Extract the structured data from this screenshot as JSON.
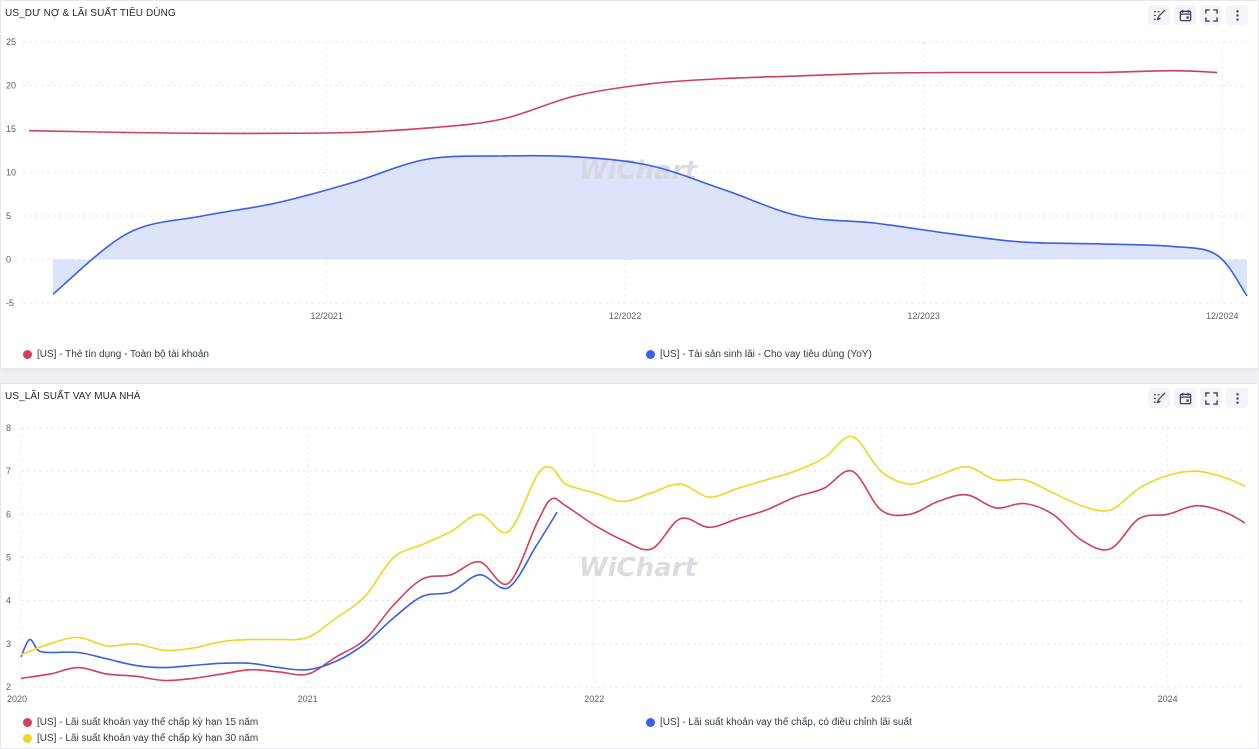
{
  "panels": [
    {
      "title": "US_DƯ NỢ & LÃI SUẤT TIÊU DÙNG",
      "toolbar": [
        "brush-icon",
        "calendar-icon",
        "fullscreen-icon",
        "more-icon"
      ],
      "watermark": "WiChart",
      "legend": [
        {
          "label": "[US] - Thẻ tín dụng - Toàn bộ tài khoản",
          "color": "#d0405a"
        },
        {
          "label": "[US] - Tài sản sinh lãi - Cho vay tiêu dùng (YoY)",
          "color": "#3a5ee8"
        }
      ]
    },
    {
      "title": "US_LÃI SUẤT VAY MUA NHÀ",
      "toolbar": [
        "brush-icon",
        "calendar-icon",
        "fullscreen-icon",
        "more-icon"
      ],
      "watermark": "WiChart",
      "legend": [
        {
          "label": "[US] - Lãi suất khoản vay thế chấp kỳ hạn 15 năm",
          "color": "#d0405a"
        },
        {
          "label": "[US] - Lãi suất khoản vay thế chấp, có điều chỉnh lãi suất",
          "color": "#3a5ee8"
        },
        {
          "label": "[US] - Lãi suất khoản vay thế chấp kỳ hạn 30 năm",
          "color": "#f0d61e"
        }
      ]
    }
  ],
  "chart_data": [
    {
      "type": "line",
      "title": "US_DƯ NỢ & LÃI SUẤT TIÊU DÙNG",
      "ylim": [
        -5,
        25
      ],
      "yticks": [
        -5,
        0,
        5,
        10,
        15,
        20,
        25
      ],
      "xlim": [
        2020.9,
        2025.0
      ],
      "xticks": [
        {
          "v": 2021.917,
          "label": "12/2021"
        },
        {
          "v": 2022.917,
          "label": "12/2022"
        },
        {
          "v": 2023.917,
          "label": "12/2023"
        },
        {
          "v": 2024.917,
          "label": "12/2024"
        }
      ],
      "grid": true,
      "legend_position": "bottom",
      "series": [
        {
          "name": "[US] - Thẻ tín dụng - Toàn bộ tài khoản",
          "style": "line",
          "color": "#d0405a",
          "x": [
            2020.92,
            2021.25,
            2021.5,
            2021.75,
            2022.0,
            2022.25,
            2022.5,
            2022.75,
            2023.0,
            2023.25,
            2023.5,
            2023.75,
            2024.0,
            2024.25,
            2024.5,
            2024.75,
            2024.9
          ],
          "y": [
            14.8,
            14.6,
            14.5,
            14.5,
            14.6,
            15.1,
            16.1,
            18.8,
            20.2,
            20.8,
            21.1,
            21.4,
            21.5,
            21.5,
            21.5,
            21.7,
            21.5
          ]
        },
        {
          "name": "[US] - Tài sản sinh lãi - Cho vay tiêu dùng (YoY)",
          "style": "area",
          "color": "#3a5ee8",
          "fill": "#dbe1fb",
          "x": [
            2021.0,
            2021.25,
            2021.5,
            2021.75,
            2022.0,
            2022.25,
            2022.5,
            2022.75,
            2023.0,
            2023.25,
            2023.5,
            2023.75,
            2024.0,
            2024.25,
            2024.5,
            2024.75,
            2024.9,
            2025.0
          ],
          "y": [
            -4.0,
            3.0,
            5.0,
            6.5,
            8.8,
            11.5,
            11.9,
            11.8,
            10.8,
            8.0,
            5.0,
            4.2,
            3.0,
            2.0,
            1.8,
            1.5,
            0.5,
            -4.2
          ]
        }
      ]
    },
    {
      "type": "line",
      "title": "US_LÃI SUẤT VAY MUA NHÀ",
      "ylim": [
        2,
        8
      ],
      "yticks": [
        2,
        3,
        4,
        5,
        6,
        7,
        8
      ],
      "xlim": [
        2020.0,
        2024.27
      ],
      "xticks": [
        {
          "v": 2020,
          "label": "2020"
        },
        {
          "v": 2021,
          "label": "2021"
        },
        {
          "v": 2022,
          "label": "2022"
        },
        {
          "v": 2023,
          "label": "2023"
        },
        {
          "v": 2024,
          "label": "2024"
        }
      ],
      "grid": true,
      "legend_position": "bottom",
      "series": [
        {
          "name": "[US] - Lãi suất khoản vay thế chấp kỳ hạn 15 năm",
          "color": "#d0405a",
          "x": [
            2020.0,
            2020.1,
            2020.2,
            2020.3,
            2020.4,
            2020.5,
            2020.6,
            2020.7,
            2020.8,
            2020.9,
            2021.0,
            2021.1,
            2021.2,
            2021.3,
            2021.4,
            2021.5,
            2021.6,
            2021.7,
            2021.8,
            2021.85,
            2021.9,
            2022.0,
            2022.1,
            2022.2,
            2022.3,
            2022.4,
            2022.5,
            2022.6,
            2022.7,
            2022.8,
            2022.9,
            2023.0,
            2023.1,
            2023.2,
            2023.3,
            2023.4,
            2023.5,
            2023.6,
            2023.7,
            2023.8,
            2023.9,
            2024.0,
            2024.1,
            2024.2,
            2024.27
          ],
          "y": [
            2.2,
            2.3,
            2.45,
            2.3,
            2.25,
            2.15,
            2.2,
            2.3,
            2.4,
            2.35,
            2.3,
            2.7,
            3.1,
            3.9,
            4.5,
            4.6,
            4.9,
            4.4,
            5.8,
            6.35,
            6.2,
            5.75,
            5.4,
            5.2,
            5.9,
            5.7,
            5.9,
            6.1,
            6.4,
            6.6,
            7.0,
            6.1,
            6.0,
            6.3,
            6.45,
            6.15,
            6.25,
            6.0,
            5.4,
            5.2,
            5.9,
            6.0,
            6.2,
            6.05,
            5.8
          ]
        },
        {
          "name": "[US] - Lãi suất khoản vay thế chấp, có điều chỉnh lãi suất",
          "color": "#3a5ee8",
          "x": [
            2020.0,
            2020.03,
            2020.06,
            2020.1,
            2020.2,
            2020.3,
            2020.4,
            2020.5,
            2020.6,
            2020.7,
            2020.8,
            2020.9,
            2021.0,
            2021.1,
            2021.2,
            2021.3,
            2021.4,
            2021.5,
            2021.6,
            2021.7,
            2021.8,
            2021.87
          ],
          "y": [
            2.7,
            3.1,
            2.85,
            2.8,
            2.8,
            2.65,
            2.5,
            2.45,
            2.5,
            2.55,
            2.55,
            2.45,
            2.4,
            2.6,
            3.0,
            3.6,
            4.1,
            4.2,
            4.6,
            4.3,
            5.3,
            6.05
          ]
        },
        {
          "name": "[US] - Lãi suất khoản vay thế chấp kỳ hạn 30 năm",
          "color": "#f0d61e",
          "x": [
            2020.0,
            2020.1,
            2020.2,
            2020.3,
            2020.4,
            2020.5,
            2020.6,
            2020.7,
            2020.8,
            2020.9,
            2021.0,
            2021.1,
            2021.2,
            2021.3,
            2021.4,
            2021.5,
            2021.6,
            2021.7,
            2021.8,
            2021.85,
            2021.9,
            2022.0,
            2022.1,
            2022.2,
            2022.3,
            2022.4,
            2022.5,
            2022.6,
            2022.7,
            2022.8,
            2022.9,
            2023.0,
            2023.1,
            2023.2,
            2023.3,
            2023.4,
            2023.5,
            2023.6,
            2023.7,
            2023.8,
            2023.9,
            2024.0,
            2024.1,
            2024.2,
            2024.27
          ],
          "y": [
            2.75,
            3.0,
            3.15,
            2.95,
            3.0,
            2.85,
            2.9,
            3.05,
            3.1,
            3.1,
            3.15,
            3.6,
            4.1,
            5.0,
            5.3,
            5.6,
            6.0,
            5.6,
            6.9,
            7.08,
            6.7,
            6.5,
            6.3,
            6.5,
            6.7,
            6.4,
            6.6,
            6.8,
            7.0,
            7.3,
            7.8,
            7.0,
            6.7,
            6.9,
            7.1,
            6.8,
            6.8,
            6.5,
            6.2,
            6.1,
            6.6,
            6.9,
            7.0,
            6.85,
            6.65
          ]
        }
      ]
    }
  ]
}
